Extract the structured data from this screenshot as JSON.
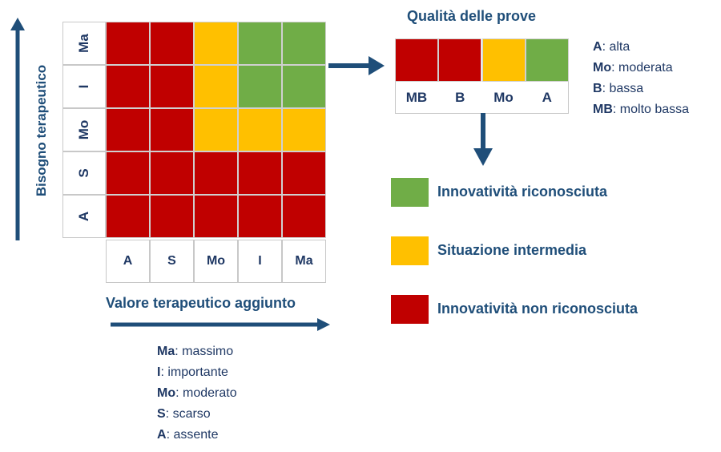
{
  "colors": {
    "red": "#c00000",
    "yellow": "#ffc000",
    "green": "#70ad47",
    "arrow": "#1f4e79"
  },
  "matrix": {
    "y_axis_label": "Bisogno terapeutico",
    "x_axis_label": "Valore terapeutico aggiunto",
    "row_labels": [
      "Ma",
      "I",
      "Mo",
      "S",
      "A"
    ],
    "col_labels": [
      "A",
      "S",
      "Mo",
      "I",
      "Ma"
    ],
    "cells": [
      [
        "red",
        "red",
        "yellow",
        "green",
        "green"
      ],
      [
        "red",
        "red",
        "yellow",
        "green",
        "green"
      ],
      [
        "red",
        "red",
        "yellow",
        "yellow",
        "yellow"
      ],
      [
        "red",
        "red",
        "red",
        "red",
        "red"
      ],
      [
        "red",
        "red",
        "red",
        "red",
        "red"
      ]
    ]
  },
  "value_legend": [
    {
      "abbr": "Ma",
      "text": ": massimo"
    },
    {
      "abbr": "I",
      "text": ": importante"
    },
    {
      "abbr": "Mo",
      "text": ": moderato"
    },
    {
      "abbr": "S",
      "text": ": scarso"
    },
    {
      "abbr": "A",
      "text": ": assente"
    }
  ],
  "quality": {
    "title": "Qualità delle prove",
    "colors": [
      "red",
      "red",
      "yellow",
      "green"
    ],
    "labels": [
      "MB",
      "B",
      "Mo",
      "A"
    ],
    "legend": [
      {
        "abbr": "A",
        "text": ": alta"
      },
      {
        "abbr": "Mo",
        "text": ": moderata"
      },
      {
        "abbr": "B",
        "text": ": bassa"
      },
      {
        "abbr": "MB",
        "text": ": molto bassa"
      }
    ]
  },
  "outcomes": [
    {
      "color": "green",
      "label": "Innovatività riconosciuta"
    },
    {
      "color": "yellow",
      "label": "Situazione intermedia"
    },
    {
      "color": "red",
      "label": "Innovatività non riconosciuta"
    }
  ]
}
